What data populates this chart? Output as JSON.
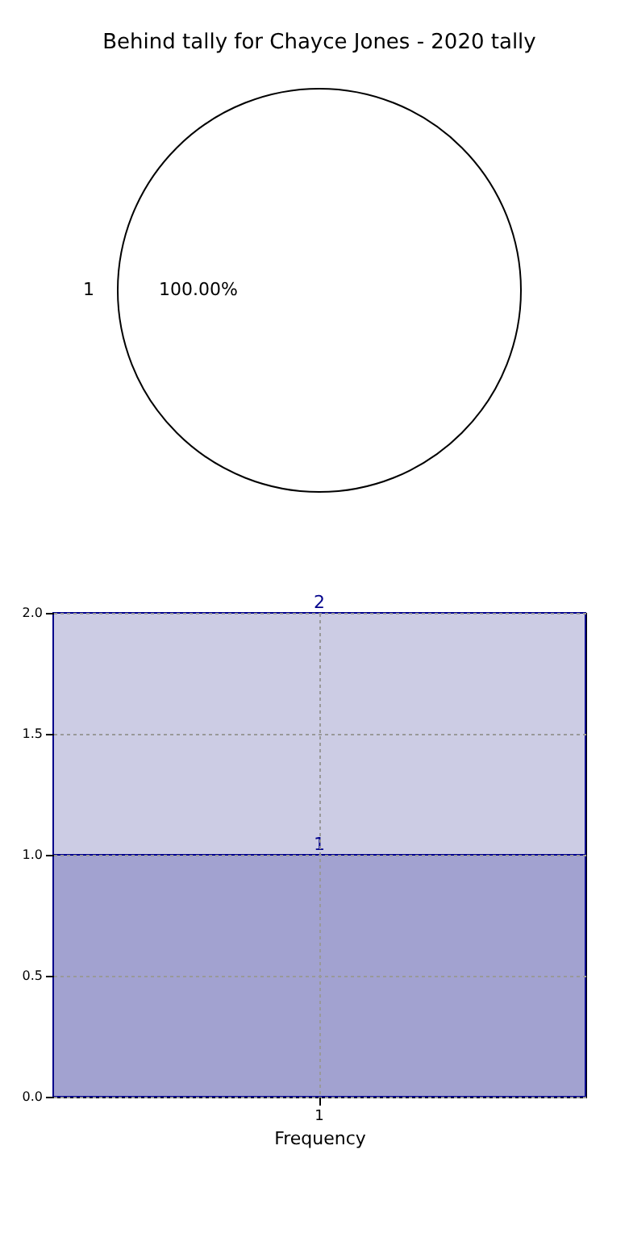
{
  "chart_data": [
    {
      "type": "pie",
      "title": "Behind tally for Chayce Jones - 2020 tally",
      "categories": [
        "1"
      ],
      "values": [
        100
      ],
      "colors": [
        "#ffffff"
      ],
      "value_labels": [
        "100.00%"
      ]
    },
    {
      "type": "bar",
      "stacked": true,
      "categories": [
        "1"
      ],
      "xlabel": "Frequency",
      "ylim": [
        0,
        2
      ],
      "yticks": [
        {
          "value": 0,
          "label": "0.0"
        },
        {
          "value": 0.5,
          "label": "0.5"
        },
        {
          "value": 1,
          "label": "1.0"
        },
        {
          "value": 1.5,
          "label": "1.5"
        },
        {
          "value": 2,
          "label": "2.0"
        }
      ],
      "grid": true,
      "totals": [
        "2"
      ],
      "series": [
        {
          "color": "#a2a2d0",
          "values": [
            1
          ],
          "value_labels": [
            "1"
          ]
        },
        {
          "color": "#cccce4",
          "values": [
            1
          ]
        }
      ]
    }
  ]
}
